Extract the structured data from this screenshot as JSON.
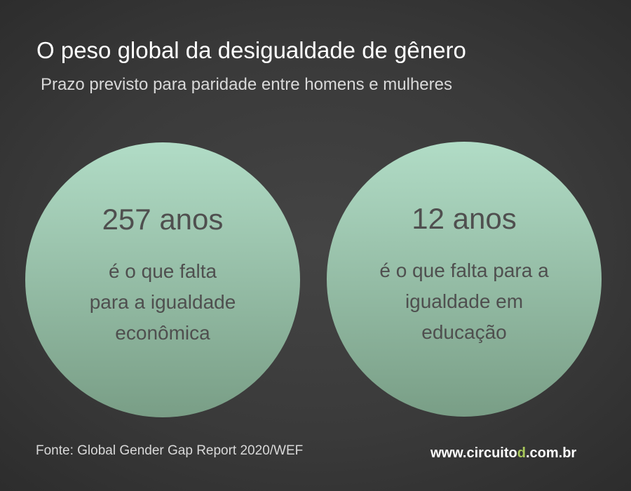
{
  "header": {
    "title": "O peso global da desigualdade de gênero",
    "subtitle": "Prazo previsto para paridade entre homens e mulheres"
  },
  "stats": [
    {
      "value": "257 anos",
      "description_lines": [
        "é o que falta",
        "para a igualdade",
        "econômica"
      ]
    },
    {
      "value": "12 anos",
      "description_lines": [
        "é o que falta para a",
        "igualdade em",
        "educação"
      ]
    }
  ],
  "footer": {
    "source": "Fonte: Global Gender Gap Report 2020/WEF",
    "website": {
      "before": "www.circuito",
      "highlight": "d",
      "after": ".com.br"
    }
  },
  "colors": {
    "circle_top": "#b1dcc6",
    "circle_bottom": "#799e86",
    "text_on_circle": "#4f4f4f",
    "highlight": "#a9c95a"
  }
}
